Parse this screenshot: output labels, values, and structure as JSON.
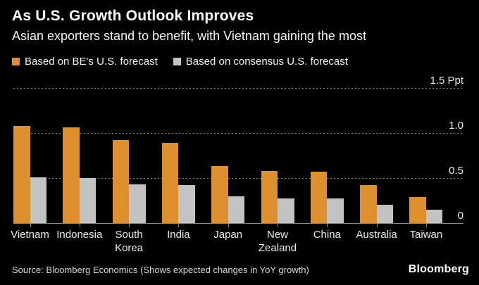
{
  "header": {
    "title": "As U.S. Growth Outlook Improves",
    "subtitle": "Asian exporters stand to benefit, with Vietnam gaining the most"
  },
  "legend": [
    {
      "label": "Based on BE's U.S. forecast",
      "color": "#DE902E"
    },
    {
      "label": "Based on consensus U.S. forecast",
      "color": "#C3C3C3"
    }
  ],
  "chart_data": {
    "type": "bar",
    "title": "As U.S. Growth Outlook Improves",
    "subtitle": "Asian exporters stand to benefit, with Vietnam gaining the most",
    "categories": [
      "Vietnam",
      "Indonesia",
      "South Korea",
      "India",
      "Japan",
      "New Zealand",
      "China",
      "Australia",
      "Taiwan"
    ],
    "series": [
      {
        "name": "Based on BE's U.S. forecast",
        "color": "#DE902E",
        "values": [
          1.08,
          1.06,
          0.92,
          0.89,
          0.63,
          0.58,
          0.57,
          0.42,
          0.29
        ]
      },
      {
        "name": "Based on consensus U.S. forecast",
        "color": "#C3C3C3",
        "values": [
          0.51,
          0.5,
          0.43,
          0.42,
          0.3,
          0.27,
          0.27,
          0.2,
          0.15
        ]
      }
    ],
    "xlabel": "",
    "ylabel": "Ppt",
    "ylim": [
      0,
      1.5
    ],
    "yticks": [
      0,
      0.5,
      1.0,
      1.5
    ],
    "ytick_labels": [
      "0",
      "0.5",
      "1.0",
      "1.5 Ppt"
    ],
    "grid": "horizontal-dotted",
    "legend_position": "top-left",
    "annotation": "Shows expected changes in YoY growth"
  },
  "footer": {
    "source": "Source: Bloomberg Economics (Shows expected changes in YoY growth)",
    "logo": "Bloomberg"
  },
  "colors": {
    "background": "#000000",
    "title_text": "#FFFFFF",
    "axis_text": "#EDEDED",
    "gridline": "#8B8B8B",
    "baseline": "#8A8A8A",
    "source_text": "#D9D9D9"
  }
}
